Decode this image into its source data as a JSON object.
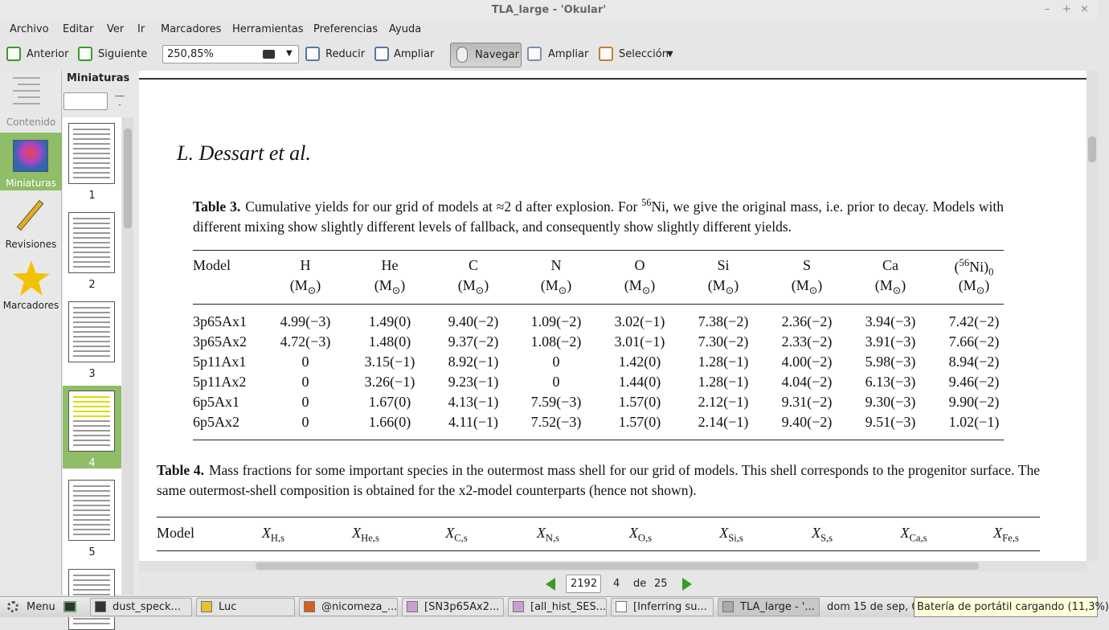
{
  "window": {
    "title": "TLA_large - 'Okular'"
  },
  "menu": [
    "Archivo",
    "Editar",
    "Ver",
    "Ir",
    "Marcadores",
    "Herramientas",
    "Preferencias",
    "Ayuda"
  ],
  "toolbar": {
    "back": "Anterior",
    "forward": "Siguiente",
    "zoom": "250,85%",
    "zoom_out": "Reducir",
    "zoom_in": "Ampliar",
    "browse": "Navegar",
    "magnify": "Ampliar",
    "selection": "Selección"
  },
  "sidebar": [
    "Contenido",
    "Miniaturas",
    "Revisiones",
    "Marcadores"
  ],
  "thumbnails": {
    "title": "Miniaturas",
    "pages": [
      1,
      2,
      3,
      4,
      5
    ]
  },
  "document": {
    "author": "L. Dessart et al.",
    "table3": {
      "label": "Table 3.",
      "caption_a": "Cumulative yields for our grid of models at ≈2 d after explosion. For ",
      "caption_sup": "56",
      "caption_b": "Ni, we give the original mass, i.e. prior to decay. Models with different mixing show slightly different levels of fallback, and consequently show slightly different yields.",
      "columns": [
        "Model",
        "H",
        "He",
        "C",
        "N",
        "O",
        "Si",
        "S",
        "Ca"
      ],
      "ni_column": {
        "open": "(",
        "sup": "56",
        "name": "Ni)",
        "sub": "0"
      },
      "unit": {
        "open": "(M",
        "sub": "⊙",
        "close": ")"
      },
      "rows": [
        [
          "3p65Ax1",
          "4.99(−3)",
          "1.49(0)",
          "9.40(−2)",
          "1.09(−2)",
          "3.02(−1)",
          "7.38(−2)",
          "2.36(−2)",
          "3.94(−3)",
          "7.42(−2)"
        ],
        [
          "3p65Ax2",
          "4.72(−3)",
          "1.48(0)",
          "9.37(−2)",
          "1.08(−2)",
          "3.01(−1)",
          "7.30(−2)",
          "2.33(−2)",
          "3.91(−3)",
          "7.66(−2)"
        ],
        [
          "5p11Ax1",
          "0",
          "3.15(−1)",
          "8.92(−1)",
          "0",
          "1.42(0)",
          "1.28(−1)",
          "4.00(−2)",
          "5.98(−3)",
          "8.94(−2)"
        ],
        [
          "5p11Ax2",
          "0",
          "3.26(−1)",
          "9.23(−1)",
          "0",
          "1.44(0)",
          "1.28(−1)",
          "4.04(−2)",
          "6.13(−3)",
          "9.46(−2)"
        ],
        [
          "6p5Ax1",
          "0",
          "1.67(0)",
          "4.13(−1)",
          "7.59(−3)",
          "1.57(0)",
          "2.12(−1)",
          "9.31(−2)",
          "9.30(−3)",
          "9.90(−2)"
        ],
        [
          "6p5Ax2",
          "0",
          "1.66(0)",
          "4.11(−1)",
          "7.52(−3)",
          "1.57(0)",
          "2.14(−1)",
          "9.40(−2)",
          "9.51(−3)",
          "1.02(−1)"
        ]
      ]
    },
    "table4": {
      "label": "Table 4.",
      "caption": "Mass fractions for some important species in the outermost mass shell for our grid of models. This shell corresponds to the progenitor surface. The same outermost-shell composition is obtained for the x2-model counterparts (hence not shown).",
      "model": "Model",
      "symbol": "X",
      "subscripts": [
        "H,s",
        "He,s",
        "C,s",
        "N,s",
        "O,s",
        "Si,s",
        "S,s",
        "Ca,s",
        "Fe,s"
      ]
    }
  },
  "pagebar": {
    "page_input": "2192",
    "page": "4",
    "of": "de",
    "total": "25"
  },
  "taskbar": {
    "menu": "Menu",
    "tasks": [
      "dust_speck...",
      "Luc",
      "@nicomeza_...",
      "[SN3p65Ax2...",
      "[all_hist_SES...",
      "[Inferring su...",
      "TLA_large - '..."
    ],
    "clock": "dom 15 de sep, 0",
    "tooltip": "Batería de portátil cargando (11,3%)"
  }
}
